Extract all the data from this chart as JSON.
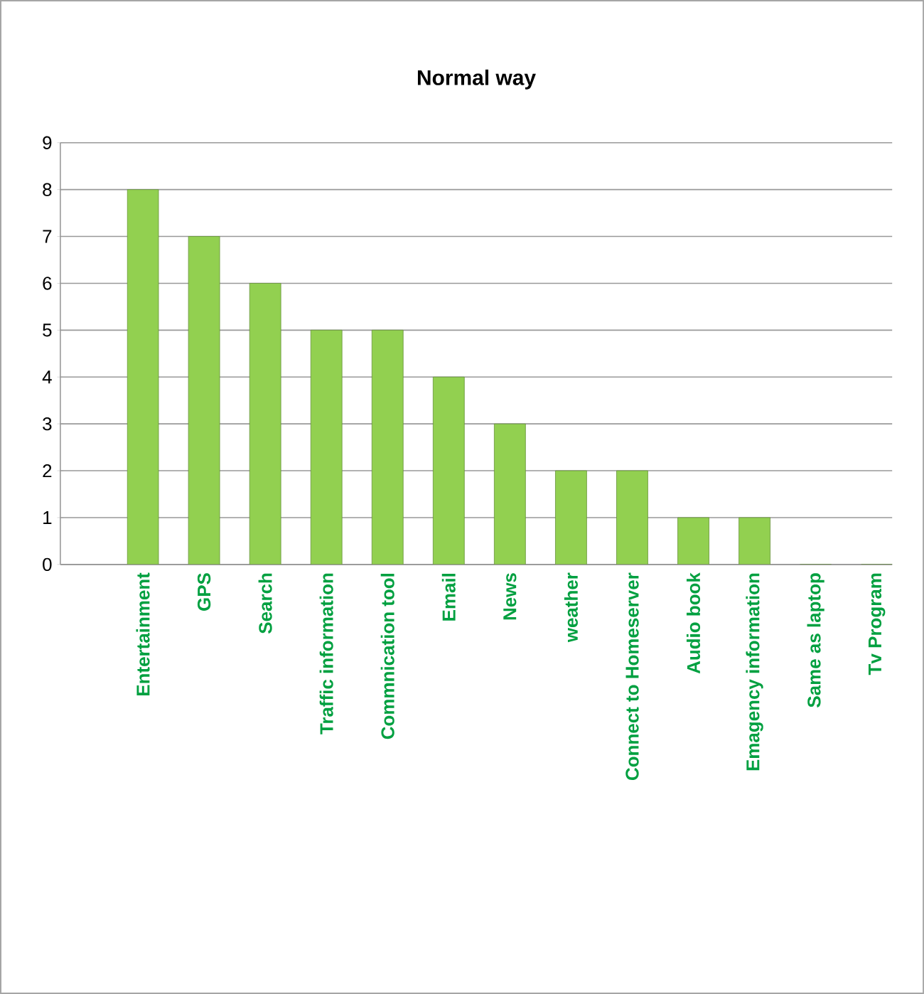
{
  "chart_data": {
    "type": "bar",
    "title": "Normal way",
    "categories": [
      "Entertainment",
      "GPS",
      "Search",
      "Traffic information",
      "Commnication tool",
      "Email",
      "News",
      "weather",
      "Connect to Homeserver",
      "Audio book",
      "Emagency information",
      "Same as laptop",
      "Tv Program"
    ],
    "values": [
      8,
      7,
      6,
      5,
      5,
      4,
      3,
      2,
      2,
      1,
      1,
      0,
      0
    ],
    "color": "#92d050",
    "ylim": [
      0,
      9
    ],
    "yticks": [
      0,
      1,
      2,
      3,
      4,
      5,
      6,
      7,
      8,
      9
    ],
    "grid": "y"
  }
}
